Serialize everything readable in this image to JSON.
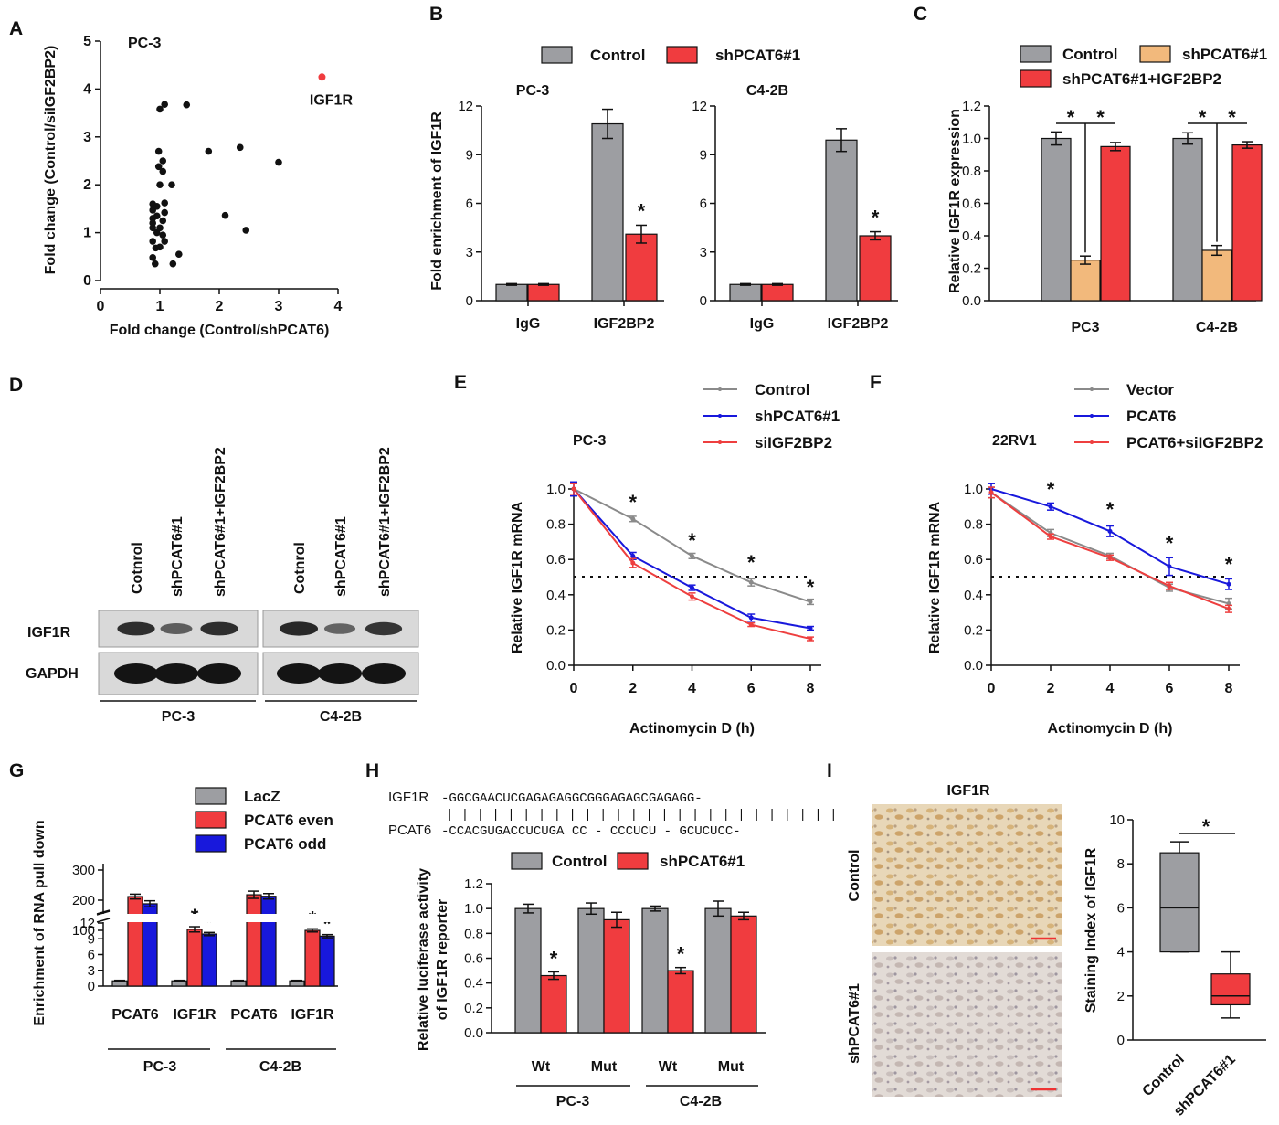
{
  "colors": {
    "control": "#9d9ea2",
    "sh": "#f03c3f",
    "tan": "#f2b97c",
    "blue": "#1818dc",
    "line_gray": "#8a8a8a",
    "line_red": "#ee3f3f"
  },
  "chart_data": [
    {
      "panel": "A",
      "type": "scatter",
      "title": "PC-3",
      "xlabel": "Fold change (Control/shPCAT6)",
      "ylabel": "Fold change (Control/siIGF2BP2)",
      "xlim": [
        0,
        4
      ],
      "ylim": [
        0,
        5
      ],
      "xticks": [
        "0",
        "1",
        "2",
        "3",
        "4"
      ],
      "yticks": [
        "0",
        "1",
        "2",
        "3",
        "4",
        "5"
      ],
      "points": [
        [
          0.92,
          0.35
        ],
        [
          0.88,
          0.48
        ],
        [
          1.22,
          0.35
        ],
        [
          1.32,
          0.55
        ],
        [
          0.93,
          0.68
        ],
        [
          1.0,
          0.7
        ],
        [
          0.88,
          0.82
        ],
        [
          1.08,
          0.82
        ],
        [
          1.05,
          0.95
        ],
        [
          0.95,
          1.0
        ],
        [
          0.88,
          1.1
        ],
        [
          1.0,
          1.1
        ],
        [
          0.88,
          1.2
        ],
        [
          1.05,
          1.25
        ],
        [
          0.88,
          1.3
        ],
        [
          0.95,
          1.35
        ],
        [
          1.08,
          1.42
        ],
        [
          0.88,
          1.47
        ],
        [
          0.95,
          1.55
        ],
        [
          0.88,
          1.6
        ],
        [
          1.08,
          1.62
        ],
        [
          1.0,
          2.0
        ],
        [
          1.2,
          2.0
        ],
        [
          1.05,
          2.28
        ],
        [
          0.98,
          2.38
        ],
        [
          1.05,
          2.5
        ],
        [
          0.98,
          2.7
        ],
        [
          1.82,
          2.7
        ],
        [
          2.35,
          2.78
        ],
        [
          2.1,
          1.36
        ],
        [
          2.45,
          1.05
        ],
        [
          3.0,
          2.47
        ],
        [
          1.0,
          3.58
        ],
        [
          1.08,
          3.68
        ],
        [
          1.45,
          3.67
        ]
      ],
      "highlight": {
        "label": "IGF1R",
        "x": 3.73,
        "y": 4.25
      }
    },
    {
      "panel": "B",
      "type": "bar",
      "ylabel": "Fold enrichment  of IGF1R",
      "ylim": [
        0,
        12
      ],
      "yticks": [
        "0",
        "3",
        "6",
        "9",
        "12"
      ],
      "legend": [
        "Control",
        "shPCAT6#1"
      ],
      "groups": [
        {
          "title": "PC-3",
          "categories": [
            "IgG",
            "IGF2BP2"
          ],
          "control": [
            1.0,
            10.9
          ],
          "control_err": [
            0.05,
            0.9
          ],
          "sh": [
            1.0,
            4.1
          ],
          "sh_err": [
            0.05,
            0.55
          ]
        },
        {
          "title": "C4-2B",
          "categories": [
            "IgG",
            "IGF2BP2"
          ],
          "control": [
            1.0,
            9.9
          ],
          "control_err": [
            0.05,
            0.7
          ],
          "sh": [
            1.0,
            4.0
          ],
          "sh_err": [
            0.05,
            0.25
          ]
        }
      ]
    },
    {
      "panel": "C",
      "type": "bar",
      "ylabel": "Relative IGF1R expression",
      "ylim": [
        0,
        1.2
      ],
      "yticks": [
        "0.0",
        "0.2",
        "0.4",
        "0.6",
        "0.8",
        "1.0",
        "1.2"
      ],
      "legend": [
        "Control",
        "shPCAT6#1",
        "shPCAT6#1+IGF2BP2"
      ],
      "categories": [
        "PC3",
        "C4-2B"
      ],
      "series": [
        {
          "name": "Control",
          "values": [
            1.0,
            1.0
          ],
          "err": [
            0.04,
            0.035
          ]
        },
        {
          "name": "shPCAT6#1",
          "values": [
            0.25,
            0.31
          ],
          "err": [
            0.025,
            0.03
          ]
        },
        {
          "name": "shPCAT6#1+IGF2BP2",
          "values": [
            0.95,
            0.96
          ],
          "err": [
            0.025,
            0.02
          ]
        }
      ]
    },
    {
      "panel": "D",
      "type": "western_blot",
      "lanes": [
        "Cotnrol",
        "shPCAT6#1",
        "shPCAT6#1+IGF2BP2",
        "Cotnrol",
        "shPCAT6#1",
        "shPCAT6#1+IGF2BP2"
      ],
      "rows": [
        "IGF1R",
        "GAPDH"
      ],
      "groups": [
        "PC-3",
        "C4-2B"
      ],
      "igf1r_intensity": [
        0.85,
        0.5,
        0.85,
        0.9,
        0.45,
        0.8
      ]
    },
    {
      "panel": "E",
      "type": "line",
      "title": "PC-3",
      "xlabel": "Actinomycin D (h)",
      "ylabel": "Relative IGF1R mRNA",
      "xlim": [
        0,
        8
      ],
      "ylim": [
        0,
        1.0
      ],
      "xticks": [
        "0",
        "2",
        "4",
        "6",
        "8"
      ],
      "yticks": [
        "0.0",
        "0.2",
        "0.4",
        "0.6",
        "0.8",
        "1.0"
      ],
      "x": [
        0,
        2,
        4,
        6,
        8
      ],
      "reference": 0.5,
      "series": [
        {
          "name": "Control",
          "values": [
            1.0,
            0.83,
            0.62,
            0.47,
            0.36
          ],
          "err": [
            0.03,
            0.015,
            0.015,
            0.02,
            0.015
          ]
        },
        {
          "name": "shPCAT6#1",
          "values": [
            1.0,
            0.62,
            0.44,
            0.27,
            0.21
          ],
          "err": [
            0.04,
            0.02,
            0.015,
            0.02,
            0.01
          ]
        },
        {
          "name": "siIGF2BP2",
          "values": [
            1.0,
            0.58,
            0.39,
            0.23,
            0.15
          ],
          "err": [
            0.03,
            0.025,
            0.02,
            0.01,
            0.01
          ]
        }
      ],
      "stars_at": [
        2,
        4,
        6,
        8
      ]
    },
    {
      "panel": "F",
      "type": "line",
      "title": "22RV1",
      "xlabel": "Actinomycin D (h)",
      "ylabel": "Relative IGF1R mRNA",
      "xlim": [
        0,
        8
      ],
      "ylim": [
        0,
        1.0
      ],
      "xticks": [
        "0",
        "2",
        "4",
        "6",
        "8"
      ],
      "yticks": [
        "0.0",
        "0.2",
        "0.4",
        "0.6",
        "0.8",
        "1.0"
      ],
      "x": [
        0,
        2,
        4,
        6,
        8
      ],
      "reference": 0.5,
      "series": [
        {
          "name": "Vector",
          "values": [
            0.98,
            0.75,
            0.62,
            0.44,
            0.35
          ],
          "err": [
            0.03,
            0.02,
            0.015,
            0.02,
            0.03
          ]
        },
        {
          "name": "PCAT6",
          "values": [
            1.0,
            0.9,
            0.76,
            0.56,
            0.46
          ],
          "err": [
            0.03,
            0.02,
            0.03,
            0.05,
            0.03
          ]
        },
        {
          "name": "PCAT6+siIGF2BP2",
          "values": [
            0.98,
            0.73,
            0.61,
            0.45,
            0.32
          ],
          "err": [
            0.03,
            0.015,
            0.015,
            0.02,
            0.02
          ]
        }
      ],
      "stars_at": [
        2,
        4,
        6,
        8
      ]
    },
    {
      "panel": "G",
      "type": "bar",
      "ylabel": "Enrichment of RNA pull down",
      "yticks_top": [
        "100",
        "200",
        "300"
      ],
      "yticks_bottom": [
        "0",
        "3",
        "6",
        "9",
        "12"
      ],
      "legend": [
        "LacZ",
        "PCAT6 even",
        "PCAT6 odd"
      ],
      "groups": [
        "PC-3",
        "C4-2B"
      ],
      "categories": [
        "PCAT6",
        "IGF1R",
        "PCAT6",
        "IGF1R"
      ],
      "series": [
        {
          "name": "LacZ",
          "values": [
            1.0,
            1.0,
            1.0,
            1.0
          ],
          "err": [
            0.1,
            0.1,
            0.1,
            0.1
          ]
        },
        {
          "name": "PCAT6 even",
          "values": [
            212,
            10.8,
            218,
            10.6
          ],
          "err": [
            8,
            0.5,
            12,
            0.3
          ]
        },
        {
          "name": "PCAT6 odd",
          "values": [
            188,
            9.9,
            213,
            9.5
          ],
          "err": [
            10,
            0.3,
            9,
            0.3
          ]
        }
      ]
    },
    {
      "panel": "H",
      "type": "bar",
      "ylabel": "Relative luciferase activity of IGF1R reporter",
      "ylim": [
        0,
        1.2
      ],
      "yticks": [
        "0.0",
        "0.2",
        "0.4",
        "0.6",
        "0.8",
        "1.0",
        "1.2"
      ],
      "legend": [
        "Control",
        "shPCAT6#1"
      ],
      "categories": [
        "Wt",
        "Mut",
        "Wt",
        "Mut"
      ],
      "groups": [
        "PC-3",
        "C4-2B"
      ],
      "series": [
        {
          "name": "Control",
          "values": [
            1.0,
            1.0,
            1.0,
            1.0
          ],
          "err": [
            0.035,
            0.045,
            0.02,
            0.06
          ]
        },
        {
          "name": "shPCAT6#1",
          "values": [
            0.46,
            0.91,
            0.5,
            0.94
          ],
          "err": [
            0.03,
            0.06,
            0.025,
            0.03
          ]
        }
      ],
      "sequence": {
        "rows": [
          "IGF1R",
          "PCAT6"
        ],
        "top": "-GGCGAACUCGAGAGAGGCGGGAGAGCGAGAGG-",
        "bars": "  | |   | |  | | |   | |  | | | | |   | | | | |    | | | | | | |",
        "bottom": "-CCACGUGACCUCUGA CC - CCCUCU - GCUCUCC-"
      }
    },
    {
      "panel": "I",
      "type": "box",
      "title": "IGF1R",
      "ylabel": "Staining Index of IGF1R",
      "ylim": [
        0,
        10
      ],
      "yticks": [
        "0",
        "2",
        "4",
        "6",
        "8",
        "10"
      ],
      "categories": [
        "Control",
        "shPCAT6#1"
      ],
      "boxes": [
        {
          "name": "Control",
          "min": 4,
          "q1": 4,
          "median": 6,
          "q3": 8.5,
          "max": 9
        },
        {
          "name": "shPCAT6#1",
          "min": 1,
          "q1": 1.6,
          "median": 2,
          "q3": 3,
          "max": 4
        }
      ],
      "image_rows": [
        "Control",
        "shPCAT6#1"
      ]
    }
  ],
  "stars": "*",
  "panels": [
    "A",
    "B",
    "C",
    "D",
    "E",
    "F",
    "G",
    "H",
    "I"
  ]
}
